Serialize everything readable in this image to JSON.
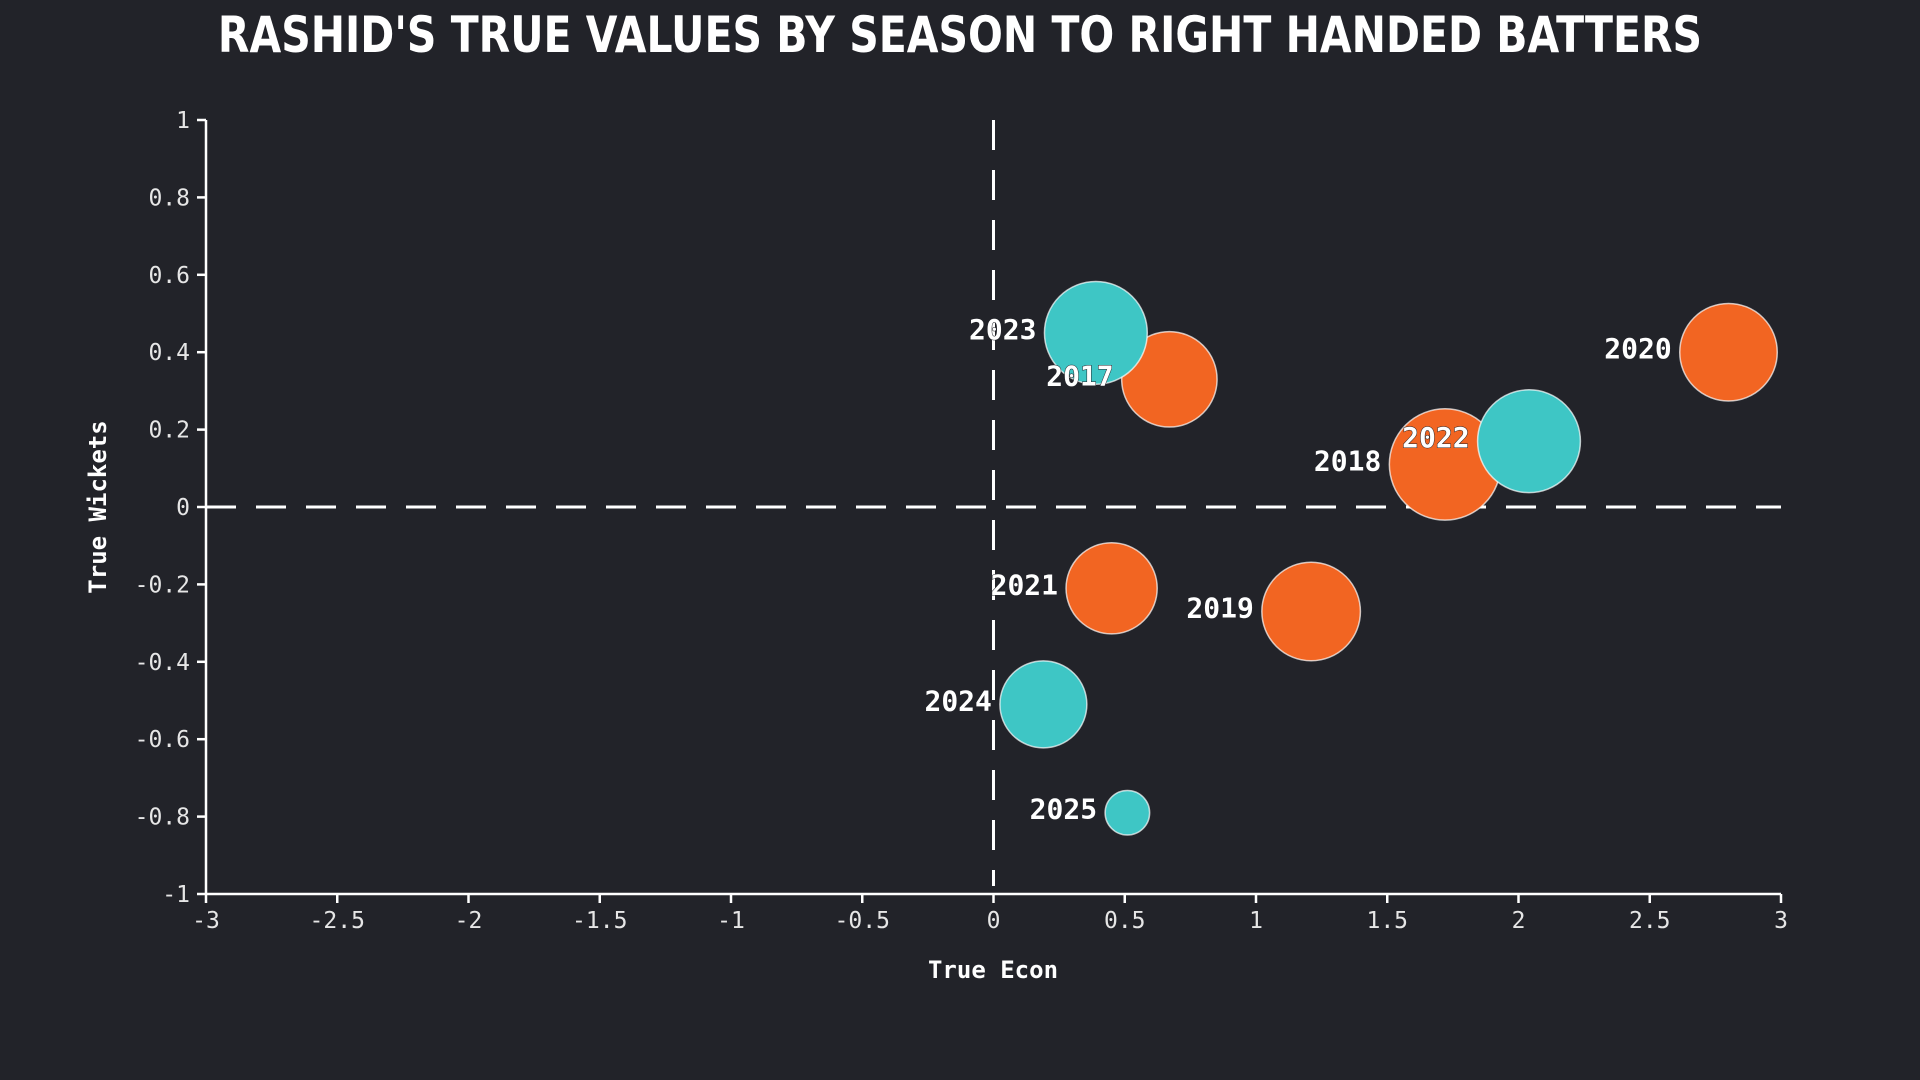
{
  "chart_data": {
    "type": "scatter",
    "title": "RASHID'S TRUE VALUES BY SEASON TO RIGHT HANDED BATTERS",
    "xlabel": "True Econ",
    "ylabel": "True Wickets",
    "xlim": [
      -3,
      3
    ],
    "ylim": [
      -1,
      1
    ],
    "x_ticks": [
      "-3",
      "-2.5",
      "-2",
      "-1.5",
      "-1",
      "-0.5",
      "0",
      "0.5",
      "1",
      "1.5",
      "2",
      "2.5",
      "3"
    ],
    "y_ticks": [
      "1",
      "0.8",
      "0.6",
      "0.4",
      "0.2",
      "0",
      "-0.2",
      "-0.4",
      "-0.6",
      "-0.8",
      "-1"
    ],
    "reference_lines": {
      "x": 0,
      "y": 0,
      "style": "dashed"
    },
    "colors": {
      "orange": "#f26522",
      "teal": "#3ec6c5",
      "background": "#222329",
      "text": "#ffffff"
    },
    "points": [
      {
        "label": "2017",
        "x": 0.67,
        "y": 0.33,
        "size": 0.9,
        "color": "#f26522"
      },
      {
        "label": "2018",
        "x": 1.72,
        "y": 0.11,
        "size": 1.05,
        "color": "#f26522"
      },
      {
        "label": "2019",
        "x": 1.21,
        "y": -0.27,
        "size": 0.93,
        "color": "#f26522"
      },
      {
        "label": "2020",
        "x": 2.8,
        "y": 0.4,
        "size": 0.92,
        "color": "#f26522"
      },
      {
        "label": "2021",
        "x": 0.45,
        "y": -0.21,
        "size": 0.86,
        "color": "#f26522"
      },
      {
        "label": "2022",
        "x": 2.04,
        "y": 0.17,
        "size": 0.97,
        "color": "#3ec6c5"
      },
      {
        "label": "2023",
        "x": 0.39,
        "y": 0.45,
        "size": 0.97,
        "color": "#3ec6c5"
      },
      {
        "label": "2024",
        "x": 0.19,
        "y": -0.51,
        "size": 0.82,
        "color": "#3ec6c5"
      },
      {
        "label": "2025",
        "x": 0.51,
        "y": -0.79,
        "size": 0.42,
        "color": "#3ec6c5"
      }
    ]
  }
}
